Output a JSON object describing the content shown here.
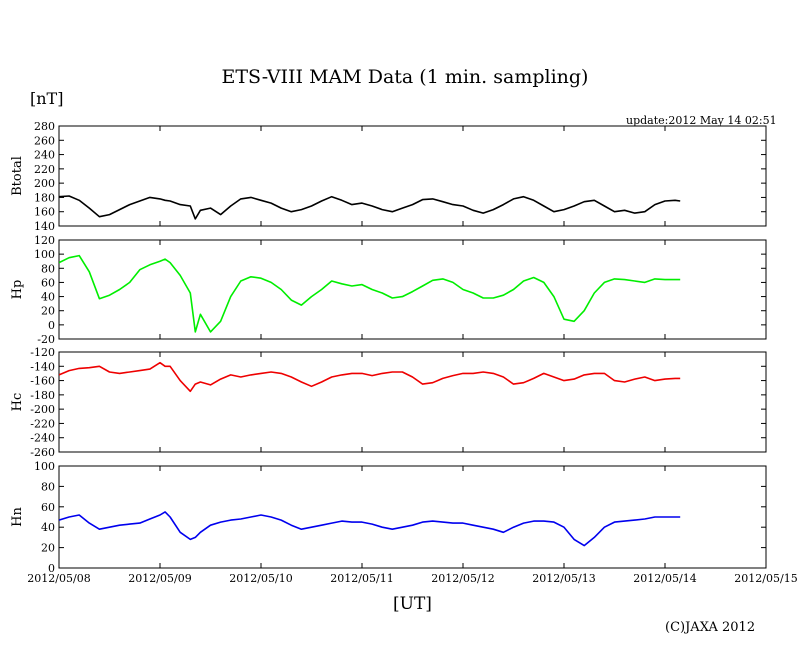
{
  "title": "ETS-VIII MAM Data (1 min. sampling)",
  "unit_label": "[nT]",
  "update": "update:2012 May 14 02:51",
  "xlabel": "[UT]",
  "copyright": "(C)JAXA 2012",
  "chart_data": {
    "type": "line",
    "x_ticks": [
      "2012/05/08",
      "2012/05/09",
      "2012/05/10",
      "2012/05/11",
      "2012/05/12",
      "2012/05/13",
      "2012/05/14",
      "2012/05/15"
    ],
    "x_range_days": [
      0,
      7
    ],
    "panels": [
      {
        "name": "Btotal",
        "color": "#000000",
        "ylim": [
          140,
          280
        ],
        "yticks": [
          140,
          160,
          180,
          200,
          220,
          240,
          260,
          280
        ],
        "x": [
          0,
          0.1,
          0.2,
          0.3,
          0.4,
          0.5,
          0.6,
          0.7,
          0.8,
          0.9,
          1.0,
          1.05,
          1.1,
          1.2,
          1.3,
          1.35,
          1.4,
          1.5,
          1.6,
          1.7,
          1.8,
          1.9,
          2.0,
          2.1,
          2.2,
          2.3,
          2.4,
          2.5,
          2.6,
          2.7,
          2.8,
          2.9,
          3.0,
          3.1,
          3.2,
          3.3,
          3.4,
          3.5,
          3.6,
          3.7,
          3.8,
          3.9,
          4.0,
          4.1,
          4.2,
          4.3,
          4.4,
          4.5,
          4.6,
          4.7,
          4.8,
          4.9,
          5.0,
          5.1,
          5.2,
          5.3,
          5.4,
          5.5,
          5.6,
          5.7,
          5.8,
          5.9,
          6.0,
          6.1,
          6.15
        ],
        "values": [
          181,
          182,
          176,
          165,
          153,
          156,
          163,
          170,
          175,
          180,
          178,
          176,
          175,
          170,
          168,
          150,
          162,
          165,
          156,
          168,
          178,
          180,
          176,
          172,
          165,
          160,
          163,
          168,
          175,
          181,
          176,
          170,
          172,
          168,
          163,
          160,
          165,
          170,
          177,
          178,
          174,
          170,
          168,
          162,
          158,
          163,
          170,
          178,
          181,
          176,
          168,
          160,
          163,
          168,
          174,
          176,
          168,
          160,
          162,
          158,
          160,
          170,
          175,
          176,
          175
        ]
      },
      {
        "name": "Hp",
        "color": "#00ee00",
        "ylim": [
          -20,
          120
        ],
        "yticks": [
          -20,
          0,
          20,
          40,
          60,
          80,
          100,
          120
        ],
        "x": [
          0,
          0.1,
          0.2,
          0.3,
          0.4,
          0.5,
          0.6,
          0.7,
          0.8,
          0.9,
          1.0,
          1.05,
          1.1,
          1.2,
          1.3,
          1.35,
          1.4,
          1.5,
          1.6,
          1.7,
          1.8,
          1.9,
          2.0,
          2.1,
          2.2,
          2.3,
          2.4,
          2.5,
          2.6,
          2.7,
          2.8,
          2.9,
          3.0,
          3.1,
          3.2,
          3.3,
          3.4,
          3.5,
          3.6,
          3.7,
          3.8,
          3.9,
          4.0,
          4.1,
          4.2,
          4.3,
          4.4,
          4.5,
          4.6,
          4.7,
          4.8,
          4.9,
          5.0,
          5.1,
          5.2,
          5.3,
          5.4,
          5.5,
          5.6,
          5.7,
          5.8,
          5.9,
          6.0,
          6.1,
          6.15
        ],
        "values": [
          88,
          95,
          98,
          75,
          37,
          42,
          50,
          60,
          78,
          85,
          90,
          93,
          88,
          70,
          45,
          -10,
          15,
          -10,
          5,
          40,
          62,
          68,
          66,
          60,
          50,
          35,
          28,
          40,
          50,
          62,
          58,
          55,
          57,
          50,
          45,
          38,
          40,
          47,
          55,
          63,
          65,
          60,
          50,
          45,
          38,
          38,
          42,
          50,
          62,
          67,
          60,
          40,
          8,
          5,
          20,
          45,
          60,
          65,
          64,
          62,
          60,
          65,
          64,
          64,
          64
        ]
      },
      {
        "name": "Hc",
        "color": "#ee0000",
        "ylim": [
          -260,
          -120
        ],
        "yticks": [
          -260,
          -240,
          -220,
          -200,
          -180,
          -160,
          -140,
          -120
        ],
        "x": [
          0,
          0.1,
          0.2,
          0.3,
          0.4,
          0.5,
          0.6,
          0.7,
          0.8,
          0.9,
          1.0,
          1.05,
          1.1,
          1.2,
          1.3,
          1.35,
          1.4,
          1.5,
          1.6,
          1.7,
          1.8,
          1.9,
          2.0,
          2.1,
          2.2,
          2.3,
          2.4,
          2.5,
          2.6,
          2.7,
          2.8,
          2.9,
          3.0,
          3.1,
          3.2,
          3.3,
          3.4,
          3.5,
          3.6,
          3.7,
          3.8,
          3.9,
          4.0,
          4.1,
          4.2,
          4.3,
          4.4,
          4.5,
          4.6,
          4.7,
          4.8,
          4.9,
          5.0,
          5.1,
          5.2,
          5.3,
          5.4,
          5.5,
          5.6,
          5.7,
          5.8,
          5.9,
          6.0,
          6.1,
          6.15
        ],
        "values": [
          -152,
          -146,
          -143,
          -142,
          -140,
          -148,
          -150,
          -148,
          -146,
          -144,
          -135,
          -140,
          -140,
          -160,
          -175,
          -165,
          -162,
          -166,
          -158,
          -152,
          -155,
          -152,
          -150,
          -148,
          -150,
          -155,
          -162,
          -168,
          -162,
          -155,
          -152,
          -150,
          -150,
          -153,
          -150,
          -148,
          -148,
          -155,
          -165,
          -163,
          -157,
          -153,
          -150,
          -150,
          -148,
          -150,
          -155,
          -165,
          -163,
          -157,
          -150,
          -155,
          -160,
          -158,
          -152,
          -150,
          -150,
          -160,
          -162,
          -158,
          -155,
          -160,
          -158,
          -157,
          -157
        ]
      },
      {
        "name": "Hn",
        "color": "#0000ee",
        "ylim": [
          0,
          100
        ],
        "yticks": [
          0,
          20,
          40,
          60,
          80,
          100
        ],
        "x": [
          0,
          0.1,
          0.2,
          0.3,
          0.4,
          0.5,
          0.6,
          0.7,
          0.8,
          0.9,
          1.0,
          1.05,
          1.1,
          1.2,
          1.3,
          1.35,
          1.4,
          1.5,
          1.6,
          1.7,
          1.8,
          1.9,
          2.0,
          2.1,
          2.2,
          2.3,
          2.4,
          2.5,
          2.6,
          2.7,
          2.8,
          2.9,
          3.0,
          3.1,
          3.2,
          3.3,
          3.4,
          3.5,
          3.6,
          3.7,
          3.8,
          3.9,
          4.0,
          4.1,
          4.2,
          4.3,
          4.4,
          4.5,
          4.6,
          4.7,
          4.8,
          4.9,
          5.0,
          5.1,
          5.2,
          5.3,
          5.4,
          5.5,
          5.6,
          5.7,
          5.8,
          5.9,
          6.0,
          6.1,
          6.15
        ],
        "values": [
          47,
          50,
          52,
          44,
          38,
          40,
          42,
          43,
          44,
          48,
          52,
          55,
          50,
          35,
          28,
          30,
          35,
          42,
          45,
          47,
          48,
          50,
          52,
          50,
          47,
          42,
          38,
          40,
          42,
          44,
          46,
          45,
          45,
          43,
          40,
          38,
          40,
          42,
          45,
          46,
          45,
          44,
          44,
          42,
          40,
          38,
          35,
          40,
          44,
          46,
          46,
          45,
          40,
          28,
          22,
          30,
          40,
          45,
          46,
          47,
          48,
          50,
          50,
          50,
          50
        ]
      }
    ]
  }
}
